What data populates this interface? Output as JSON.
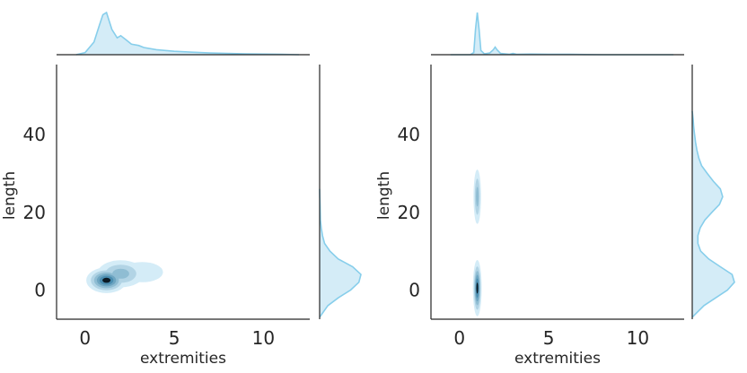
{
  "chart_data": [
    {
      "type": "kde-joint",
      "xlabel": "extremities",
      "ylabel": "length",
      "x_ticks": [
        "0",
        "5",
        "10"
      ],
      "y_ticks": [
        "0",
        "20",
        "40"
      ],
      "xlim": [
        -1.6,
        12.6
      ],
      "ylim": [
        -7.5,
        58
      ],
      "color": "#87ceeb",
      "fill_color": "#d4ecf7",
      "dark_color": "#0b1a24",
      "joint_components": [
        {
          "x": 1.2,
          "y": 2.5,
          "sx": 0.55,
          "sy": 1.6,
          "w": 1.0
        },
        {
          "x": 2.0,
          "y": 4.2,
          "sx": 0.75,
          "sy": 2.0,
          "w": 0.55
        },
        {
          "x": 3.2,
          "y": 4.6,
          "sx": 0.9,
          "sy": 2.0,
          "w": 0.28
        }
      ],
      "x_marginal": {
        "x": [
          -0.5,
          0.0,
          0.5,
          0.8,
          1.0,
          1.2,
          1.5,
          1.8,
          2.0,
          2.3,
          2.6,
          3.0,
          3.3,
          4.0,
          5.0,
          6.0,
          7.0,
          8.0,
          9.0,
          10.0,
          11.0,
          12.0
        ],
        "density": [
          0.0,
          0.05,
          0.3,
          0.7,
          0.95,
          1.0,
          0.6,
          0.4,
          0.45,
          0.35,
          0.25,
          0.22,
          0.17,
          0.12,
          0.08,
          0.06,
          0.04,
          0.03,
          0.02,
          0.015,
          0.01,
          0.0
        ]
      },
      "y_marginal": {
        "y": [
          -7.0,
          -4.0,
          -2.0,
          0.0,
          2.0,
          4.0,
          6.0,
          8.0,
          10.0,
          12.0,
          14.0,
          16.0,
          18.0,
          20.0,
          22.0,
          24.0,
          26.0
        ],
        "density": [
          0.0,
          0.2,
          0.45,
          0.75,
          0.95,
          1.0,
          0.8,
          0.45,
          0.25,
          0.12,
          0.07,
          0.04,
          0.02,
          0.015,
          0.01,
          0.005,
          0.0
        ]
      }
    },
    {
      "type": "kde-joint",
      "xlabel": "extremities",
      "ylabel": "length",
      "x_ticks": [
        "0",
        "5",
        "10"
      ],
      "y_ticks": [
        "0",
        "20",
        "40"
      ],
      "xlim": [
        -1.6,
        12.6
      ],
      "ylim": [
        -7.5,
        58
      ],
      "color": "#87ceeb",
      "fill_color": "#d4ecf7",
      "dark_color": "#0b1a24",
      "joint_components": [
        {
          "x": 1.0,
          "y": 0.5,
          "sx": 0.12,
          "sy": 3.5,
          "w": 1.0
        },
        {
          "x": 1.0,
          "y": 24.0,
          "sx": 0.12,
          "sy": 4.0,
          "w": 0.55
        },
        {
          "x": 2.0,
          "y": 25.0,
          "sx": 0.06,
          "sy": 1.5,
          "w": 0.12
        }
      ],
      "x_marginal": {
        "x": [
          -0.5,
          0.6,
          0.8,
          0.9,
          1.0,
          1.1,
          1.2,
          1.4,
          1.7,
          1.9,
          2.0,
          2.1,
          2.3,
          2.8,
          3.0,
          3.2,
          4.0,
          5.0,
          6.0,
          7.0,
          8.0,
          9.0,
          10.0,
          12.0
        ],
        "density": [
          0.0,
          0.0,
          0.05,
          0.6,
          1.0,
          0.6,
          0.1,
          0.02,
          0.04,
          0.12,
          0.18,
          0.12,
          0.03,
          0.01,
          0.03,
          0.01,
          0.015,
          0.01,
          0.01,
          0.005,
          0.0,
          0.0,
          0.0,
          0.0
        ]
      },
      "y_marginal": {
        "y": [
          -7.0,
          -4.0,
          -2.0,
          0.0,
          2.0,
          4.0,
          6.0,
          8.0,
          10.0,
          12.0,
          14.0,
          16.0,
          18.0,
          20.0,
          22.0,
          24.0,
          26.0,
          28.0,
          30.0,
          32.0,
          34.0,
          36.0,
          38.0,
          40.0,
          42.0,
          44.0,
          46.0
        ],
        "density": [
          0.0,
          0.25,
          0.5,
          0.75,
          0.9,
          0.85,
          0.6,
          0.35,
          0.18,
          0.12,
          0.12,
          0.17,
          0.27,
          0.42,
          0.58,
          0.65,
          0.6,
          0.45,
          0.32,
          0.2,
          0.14,
          0.1,
          0.07,
          0.05,
          0.03,
          0.02,
          0.0
        ]
      }
    }
  ]
}
